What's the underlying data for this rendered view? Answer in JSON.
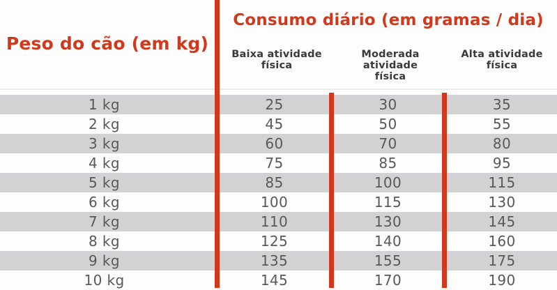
{
  "colors": {
    "accent_red": "#d2391c",
    "row_stripe_gray": "#d2d2d4",
    "row_text_gray": "#58575a",
    "subheader_text": "#3a393c"
  },
  "header": {
    "weight_title": "Peso do cão (em kg)",
    "consumption_title": "Consumo diário (em gramas / dia)",
    "activity_labels": [
      {
        "line1": "Baixa atividade",
        "line2": "física"
      },
      {
        "line1": "Moderada atividade",
        "line2": "física"
      },
      {
        "line1": "Alta atividade",
        "line2": "física"
      }
    ]
  },
  "chart_data": {
    "type": "table",
    "title": "Consumo diário (em gramas / dia)",
    "weight_column_header": "Peso do cão (em kg)",
    "activity_column_headers": [
      "Baixa atividade física",
      "Moderada atividade física",
      "Alta atividade física"
    ],
    "rows": [
      {
        "weight": "1 kg",
        "low": "25",
        "moderate": "30",
        "high": "35"
      },
      {
        "weight": "2 kg",
        "low": "45",
        "moderate": "50",
        "high": "55"
      },
      {
        "weight": "3 kg",
        "low": "60",
        "moderate": "70",
        "high": "80"
      },
      {
        "weight": "4 kg",
        "low": "75",
        "moderate": "85",
        "high": "95"
      },
      {
        "weight": "5 kg",
        "low": "85",
        "moderate": "100",
        "high": "115"
      },
      {
        "weight": "6 kg",
        "low": "100",
        "moderate": "115",
        "high": "130"
      },
      {
        "weight": "7 kg",
        "low": "110",
        "moderate": "130",
        "high": "145"
      },
      {
        "weight": "8 kg",
        "low": "125",
        "moderate": "140",
        "high": "160"
      },
      {
        "weight": "9 kg",
        "low": "135",
        "moderate": "155",
        "high": "175"
      },
      {
        "weight": "10 kg",
        "low": "145",
        "moderate": "170",
        "high": "190"
      }
    ]
  }
}
